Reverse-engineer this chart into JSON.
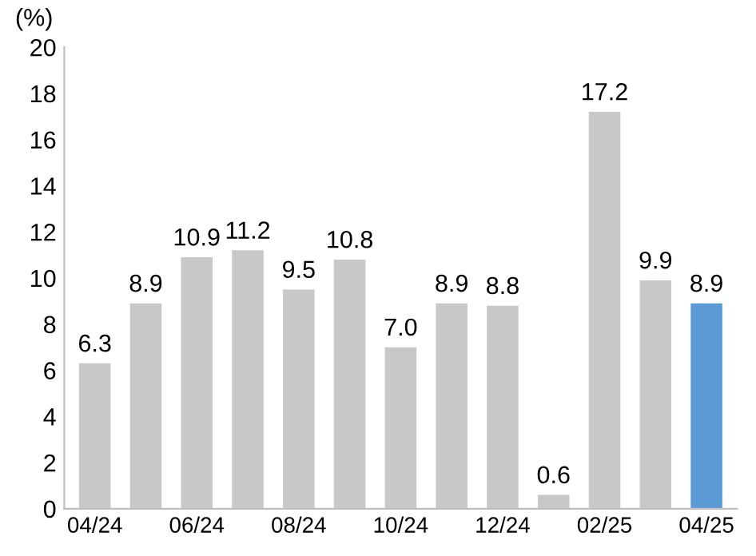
{
  "chart_data": {
    "type": "bar",
    "ylabel": "(%)",
    "categories": [
      "04/24",
      null,
      "06/24",
      null,
      "08/24",
      null,
      "10/24",
      null,
      "12/24",
      null,
      "02/25",
      null,
      "04/25"
    ],
    "values": [
      6.3,
      8.9,
      10.9,
      11.2,
      9.5,
      10.8,
      7.0,
      8.9,
      8.8,
      0.6,
      17.2,
      9.9,
      8.9
    ],
    "value_labels": [
      "6.3",
      "8.9",
      "10.9",
      "11.2",
      "9.5",
      "10.8",
      "7.0",
      "8.9",
      "8.8",
      "0.6",
      "17.2",
      "9.9",
      "8.9"
    ],
    "colors": [
      "#c8c8c8",
      "#c8c8c8",
      "#c8c8c8",
      "#c8c8c8",
      "#c8c8c8",
      "#c8c8c8",
      "#c8c8c8",
      "#c8c8c8",
      "#c8c8c8",
      "#c8c8c8",
      "#c8c8c8",
      "#c8c8c8",
      "#5b9bd5"
    ],
    "ylim": [
      0,
      20
    ],
    "yticks": [
      0,
      2,
      4,
      6,
      8,
      10,
      12,
      14,
      16,
      18,
      20
    ],
    "grid": false,
    "legend": false
  }
}
